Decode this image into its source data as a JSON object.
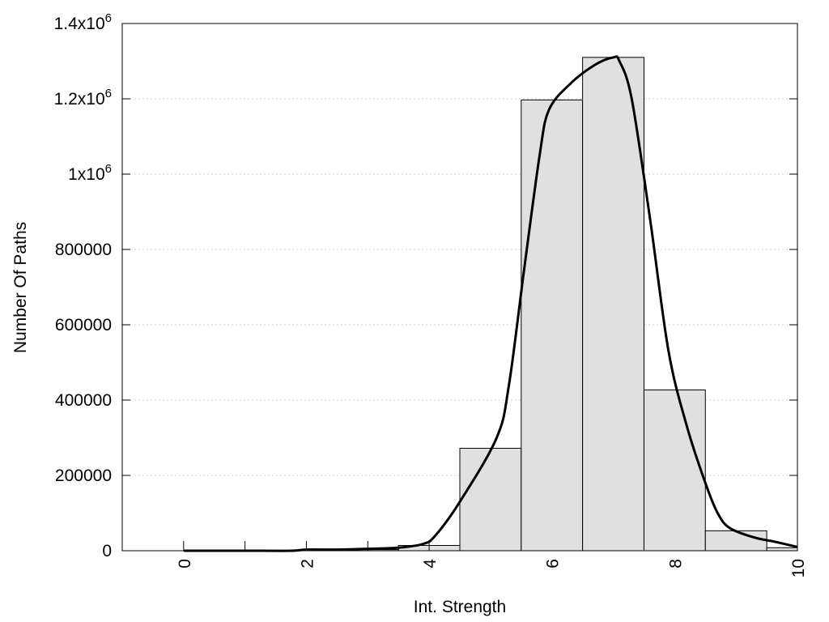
{
  "chart_data": {
    "type": "bar",
    "title": "",
    "xlabel": "Int. Strength",
    "ylabel": "Number Of Paths",
    "xlim": [
      -1,
      10
    ],
    "ylim": [
      0,
      1400000
    ],
    "grid": "y-dotted",
    "legend": "none",
    "colors": {
      "bar_fill": "#e0e0e0",
      "bar_stroke": "#000000",
      "line": "#000000",
      "grid": "#d0d0d0"
    },
    "x_ticks": [
      {
        "value": 0,
        "label": "0"
      },
      {
        "value": 2,
        "label": "2"
      },
      {
        "value": 4,
        "label": "4"
      },
      {
        "value": 6,
        "label": "6"
      },
      {
        "value": 8,
        "label": "8"
      },
      {
        "value": 10,
        "label": "10"
      }
    ],
    "x_minor_ticks": [
      0,
      1,
      2,
      3,
      4
    ],
    "y_ticks": [
      {
        "value": 0,
        "label": "0",
        "exp": ""
      },
      {
        "value": 200000,
        "label": "200000",
        "exp": ""
      },
      {
        "value": 400000,
        "label": "400000",
        "exp": ""
      },
      {
        "value": 600000,
        "label": "600000",
        "exp": ""
      },
      {
        "value": 800000,
        "label": "800000",
        "exp": ""
      },
      {
        "value": 1000000,
        "label": "1x10",
        "exp": "6"
      },
      {
        "value": 1200000,
        "label": "1.2x10",
        "exp": "6"
      },
      {
        "value": 1400000,
        "label": "1.4x10",
        "exp": "6"
      }
    ],
    "bars": [
      {
        "x": 0,
        "value": 0
      },
      {
        "x": 1,
        "value": 0
      },
      {
        "x": 2,
        "value": 1000
      },
      {
        "x": 3,
        "value": 3000
      },
      {
        "x": 4,
        "value": 14000
      },
      {
        "x": 5,
        "value": 272000
      },
      {
        "x": 6,
        "value": 1197000
      },
      {
        "x": 7,
        "value": 1310000
      },
      {
        "x": 8,
        "value": 427000
      },
      {
        "x": 9,
        "value": 53000
      },
      {
        "x": 10,
        "value": 8000
      }
    ],
    "curve": [
      [
        0,
        0
      ],
      [
        1,
        0
      ],
      [
        1.75,
        0
      ],
      [
        2,
        3000
      ],
      [
        2.5,
        3000
      ],
      [
        3,
        5000
      ],
      [
        3.5,
        8000
      ],
      [
        3.9,
        18000
      ],
      [
        4.1,
        40000
      ],
      [
        4.5,
        130000
      ],
      [
        5.1,
        300000
      ],
      [
        5.3,
        440000
      ],
      [
        5.55,
        750000
      ],
      [
        5.8,
        1050000
      ],
      [
        5.95,
        1170000
      ],
      [
        6.3,
        1240000
      ],
      [
        6.7,
        1290000
      ],
      [
        7.0,
        1310000
      ],
      [
        7.1,
        1300000
      ],
      [
        7.3,
        1200000
      ],
      [
        7.6,
        880000
      ],
      [
        7.9,
        530000
      ],
      [
        8.2,
        330000
      ],
      [
        8.5,
        180000
      ],
      [
        8.7,
        100000
      ],
      [
        8.9,
        60000
      ],
      [
        9.3,
        35000
      ],
      [
        9.6,
        25000
      ],
      [
        10,
        10000
      ]
    ]
  }
}
